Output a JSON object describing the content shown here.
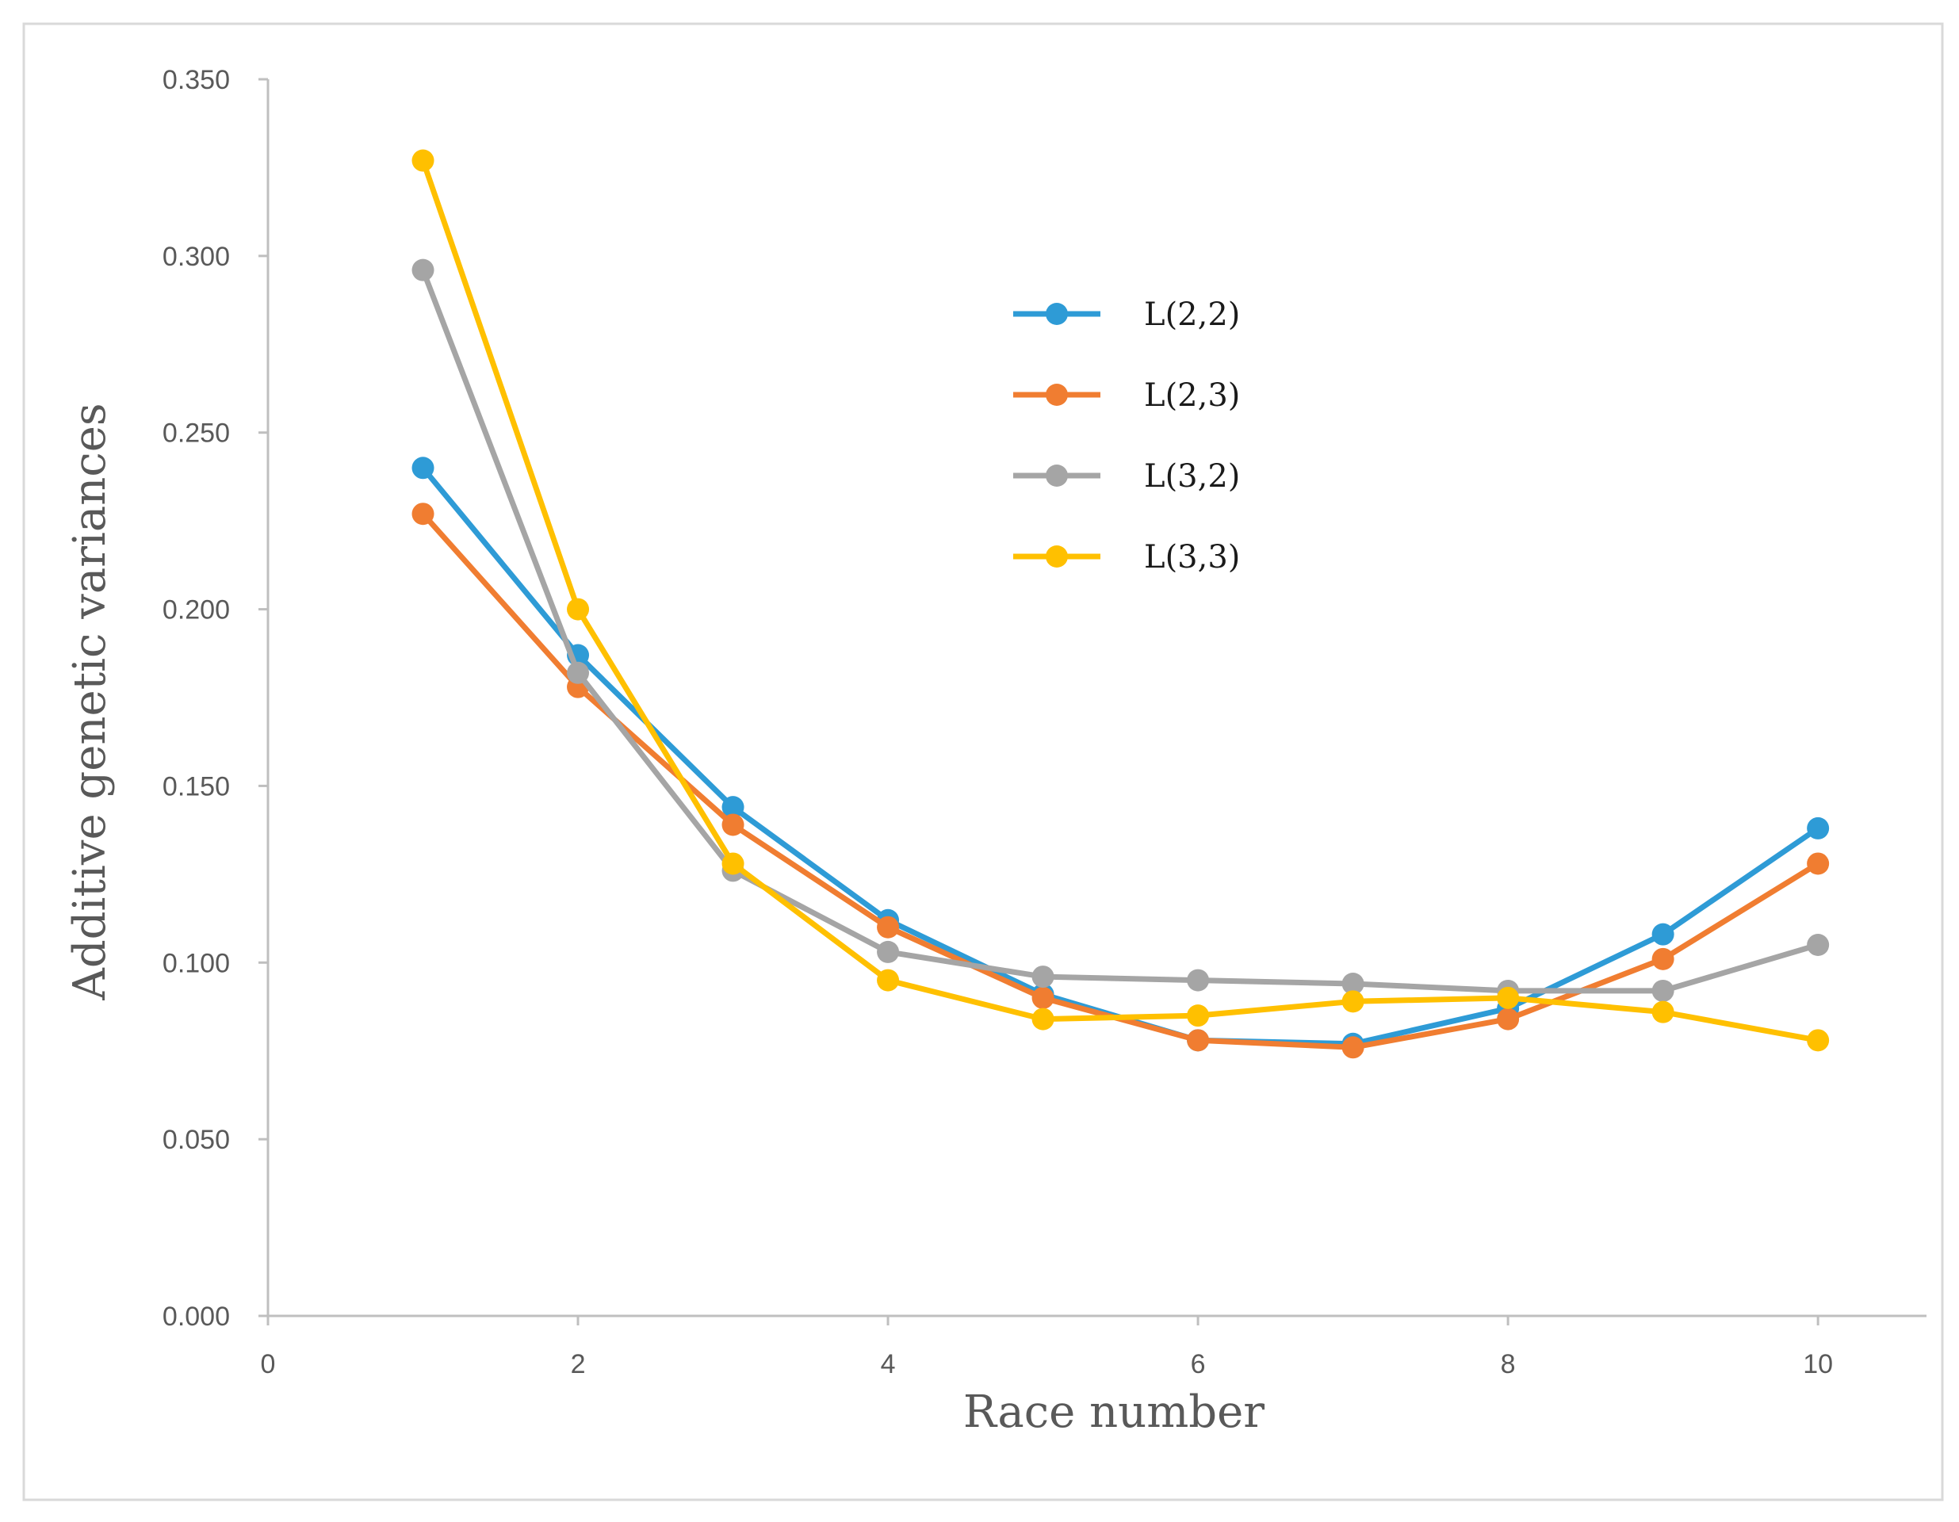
{
  "chart_data": {
    "type": "line",
    "title": "",
    "xlabel": "Race number",
    "ylabel": "Additive  genetic variances",
    "xlim": [
      0,
      10.7
    ],
    "ylim": [
      0,
      0.35
    ],
    "x_ticks": [
      0,
      2,
      4,
      6,
      8,
      10
    ],
    "x_tick_labels": [
      "0",
      "2",
      "4",
      "6",
      "8",
      "10"
    ],
    "y_ticks": [
      0,
      0.05,
      0.1,
      0.15,
      0.2,
      0.25,
      0.3,
      0.35
    ],
    "y_tick_labels": [
      "0.000",
      "0.050",
      "0.100",
      "0.150",
      "0.200",
      "0.250",
      "0.300",
      "0.350"
    ],
    "grid": false,
    "legend_position": "upper-center",
    "x": [
      1,
      2,
      3,
      4,
      5,
      6,
      7,
      8,
      9,
      10
    ],
    "series": [
      {
        "name": "L(2,2)",
        "color": "#2E9BD6",
        "values": [
          0.24,
          0.187,
          0.144,
          0.112,
          0.091,
          0.078,
          0.077,
          0.087,
          0.108,
          0.138
        ]
      },
      {
        "name": "L(2,3)",
        "color": "#F07D31",
        "values": [
          0.227,
          0.178,
          0.139,
          0.11,
          0.09,
          0.078,
          0.076,
          0.084,
          0.101,
          0.128
        ]
      },
      {
        "name": "L(3,2)",
        "color": "#A5A5A5",
        "values": [
          0.296,
          0.182,
          0.126,
          0.103,
          0.096,
          0.095,
          0.094,
          0.092,
          0.092,
          0.105
        ]
      },
      {
        "name": "L(3,3)",
        "color": "#FFC000",
        "values": [
          0.327,
          0.2,
          0.128,
          0.095,
          0.084,
          0.085,
          0.089,
          0.09,
          0.086,
          0.078
        ]
      }
    ]
  }
}
